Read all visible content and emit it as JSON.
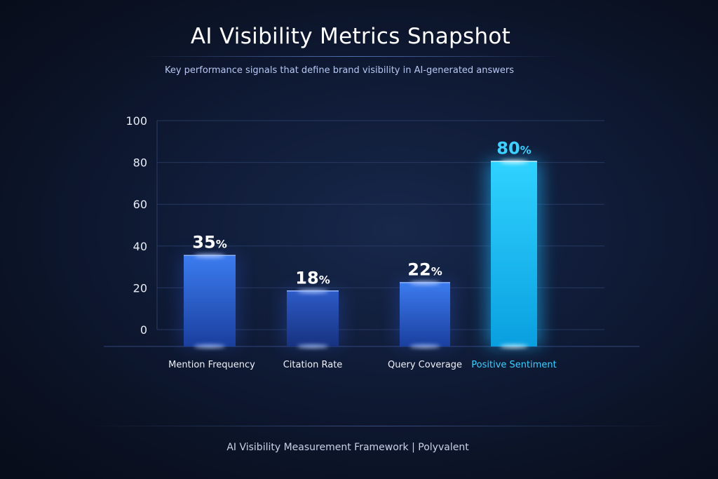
{
  "chart_data": {
    "type": "bar",
    "title": "AI Visibility Metrics Snapshot",
    "subtitle": "Key performance signals that define brand visibility in AI-generated answers",
    "xlabel": "",
    "ylabel": "",
    "ylim": [
      0,
      100
    ],
    "yticks": [
      0,
      20,
      40,
      60,
      80,
      100
    ],
    "ytick_labels": [
      "0",
      "20",
      "40",
      "60",
      "80",
      "100"
    ],
    "grid": true,
    "categories": [
      "Mention Frequency",
      "Citation Rate",
      "Query Coverage",
      "Positive Sentiment"
    ],
    "values": [
      35,
      18,
      22,
      80
    ],
    "value_labels": [
      "35",
      "18",
      "22",
      "80"
    ],
    "value_unit": "%",
    "highlighted_category": "Positive Sentiment"
  },
  "colors": {
    "bar_top": "#3c7cf0",
    "bar_bottom": "#1a3f9e",
    "bar_dark_top": "#2d5bc8",
    "bar_dark_bottom": "#17327f",
    "highlight_top": "#2fd3ff",
    "highlight_bottom": "#0a9fe0",
    "highlight_text": "#3ed0ff",
    "grid": "#2a3c66",
    "axis_text": "#e8ecf6"
  },
  "footer": {
    "text": "AI Visibility Measurement Framework | Polyvalent"
  }
}
